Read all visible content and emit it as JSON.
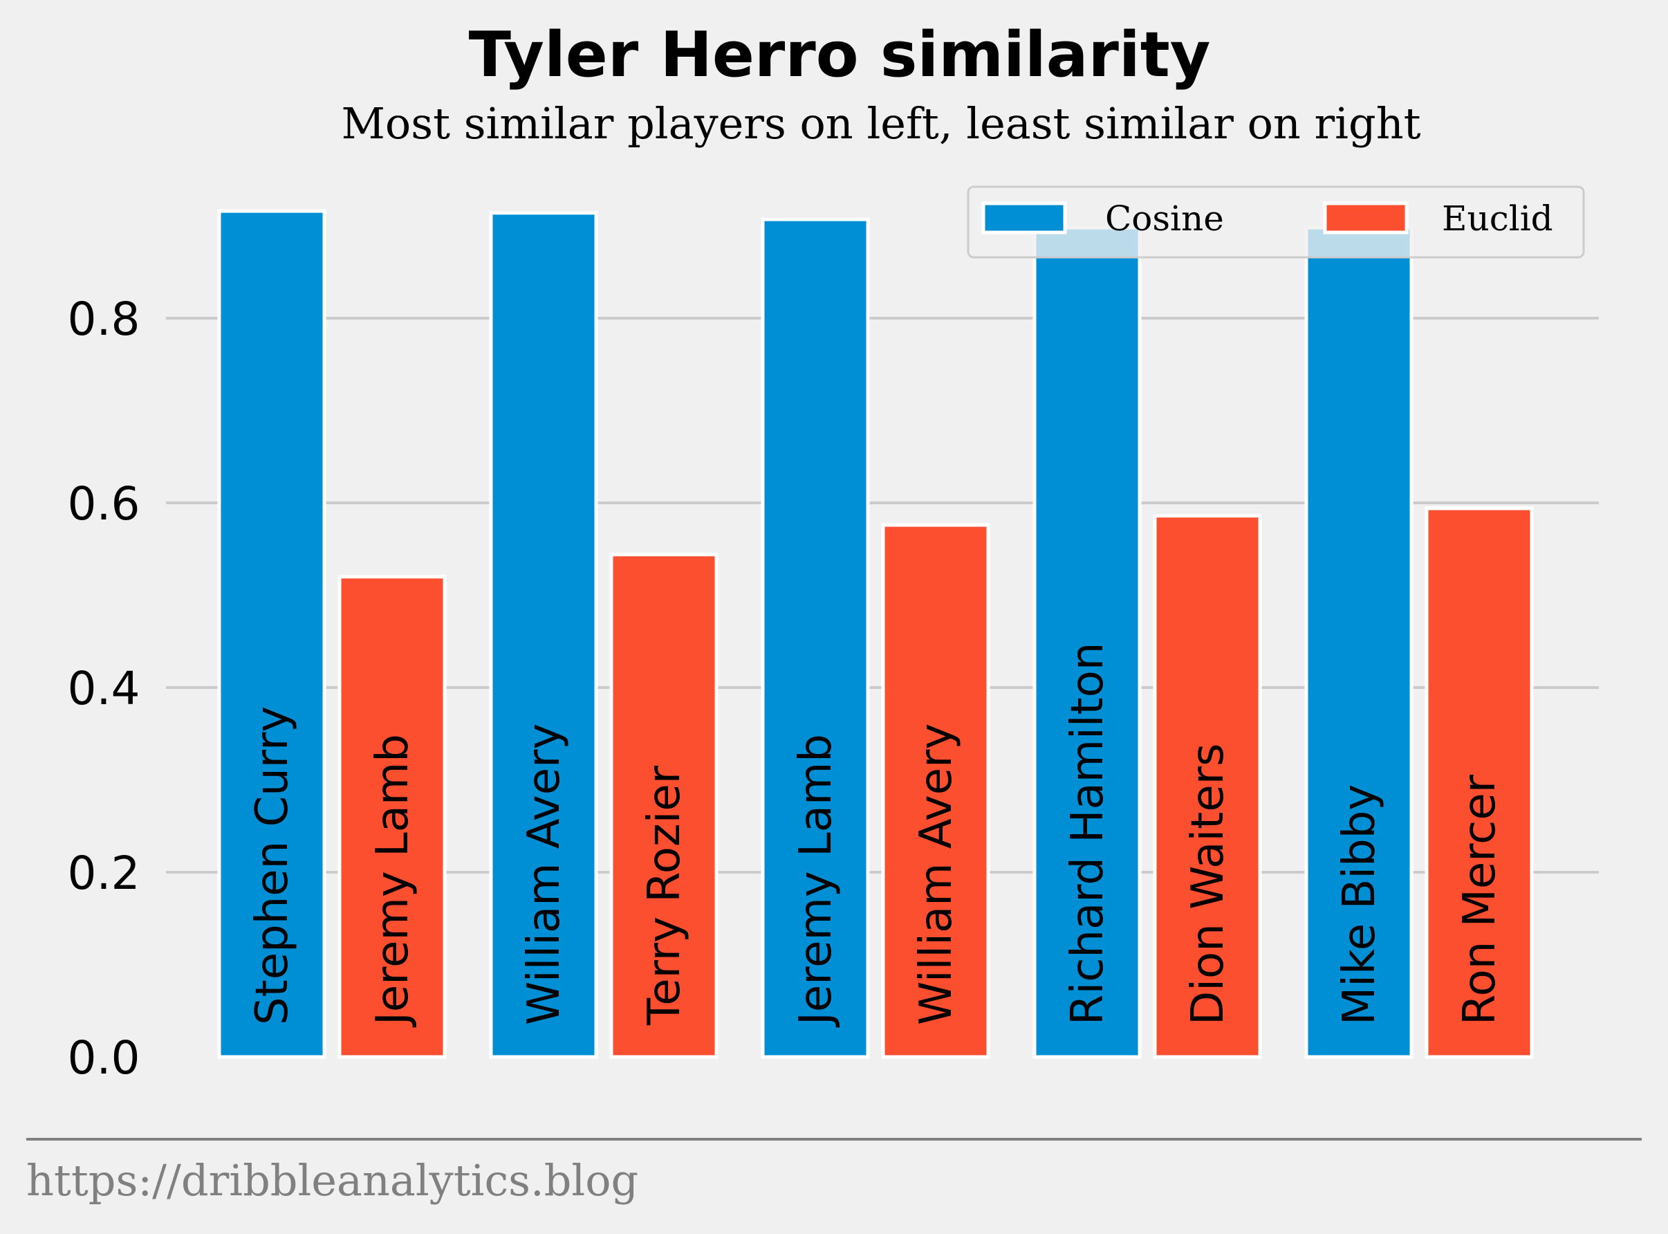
{
  "chart_data": {
    "type": "bar",
    "title": "Tyler Herro similarity",
    "subtitle": "Most similar players on left, least similar on right",
    "ylim": [
      0,
      0.95
    ],
    "yticks": [
      0.0,
      0.2,
      0.4,
      0.6,
      0.8
    ],
    "ytick_labels": [
      "0.0",
      "0.2",
      "0.4",
      "0.6",
      "0.8"
    ],
    "grid": true,
    "legend_position": "top-right",
    "series": [
      {
        "name": "Cosine",
        "color": "#008fd5",
        "labels": [
          "Stephen Curry",
          "William Avery",
          "Jeremy Lamb",
          "Richard Hamilton",
          "Mike Bibby"
        ],
        "values": [
          0.916,
          0.914,
          0.907,
          0.898,
          0.898
        ]
      },
      {
        "name": "Euclid",
        "color": "#fc4f30",
        "labels": [
          "Jeremy Lamb",
          "Terry Rozier",
          "William Avery",
          "Dion Waiters",
          "Ron Mercer"
        ],
        "values": [
          0.52,
          0.544,
          0.576,
          0.586,
          0.594
        ]
      }
    ]
  },
  "footer": {
    "source": "https://dribbleanalytics.blog"
  }
}
